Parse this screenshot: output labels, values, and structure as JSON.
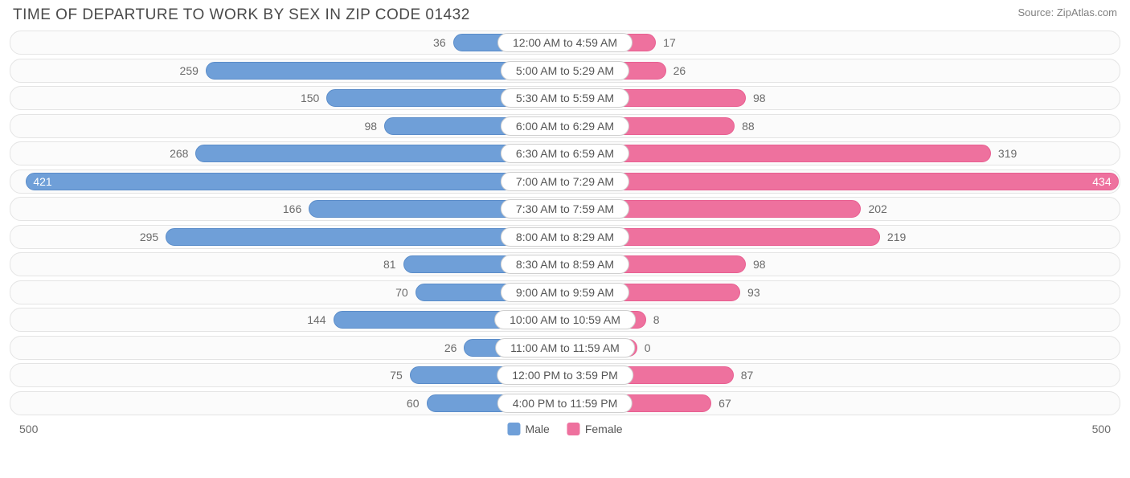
{
  "title": "TIME OF DEPARTURE TO WORK BY SEX IN ZIP CODE 01432",
  "source": "Source: ZipAtlas.com",
  "chart": {
    "type": "diverging-bar",
    "axis_max": 500,
    "axis_label_left": "500",
    "axis_label_right": "500",
    "track_bg": "#fbfbfb",
    "track_border": "#e4e4e4",
    "label_pill_bg": "#ffffff",
    "label_pill_border": "#d0d0d0",
    "value_text_color": "#6b6b6b",
    "series": {
      "male": {
        "label": "Male",
        "color": "#6f9fd8",
        "border": "#5a8cc9"
      },
      "female": {
        "label": "Female",
        "color": "#ee719e",
        "border": "#e85f91"
      }
    },
    "rows": [
      {
        "category": "12:00 AM to 4:59 AM",
        "male": 36,
        "female": 17
      },
      {
        "category": "5:00 AM to 5:29 AM",
        "male": 259,
        "female": 26
      },
      {
        "category": "5:30 AM to 5:59 AM",
        "male": 150,
        "female": 98
      },
      {
        "category": "6:00 AM to 6:29 AM",
        "male": 98,
        "female": 88
      },
      {
        "category": "6:30 AM to 6:59 AM",
        "male": 268,
        "female": 319
      },
      {
        "category": "7:00 AM to 7:29 AM",
        "male": 421,
        "female": 434
      },
      {
        "category": "7:30 AM to 7:59 AM",
        "male": 166,
        "female": 202
      },
      {
        "category": "8:00 AM to 8:29 AM",
        "male": 295,
        "female": 219
      },
      {
        "category": "8:30 AM to 8:59 AM",
        "male": 81,
        "female": 98
      },
      {
        "category": "9:00 AM to 9:59 AM",
        "male": 70,
        "female": 93
      },
      {
        "category": "10:00 AM to 10:59 AM",
        "male": 144,
        "female": 8
      },
      {
        "category": "11:00 AM to 11:59 AM",
        "male": 26,
        "female": 0
      },
      {
        "category": "12:00 PM to 3:59 PM",
        "male": 75,
        "female": 87
      },
      {
        "category": "4:00 PM to 11:59 PM",
        "male": 60,
        "female": 67
      }
    ]
  }
}
